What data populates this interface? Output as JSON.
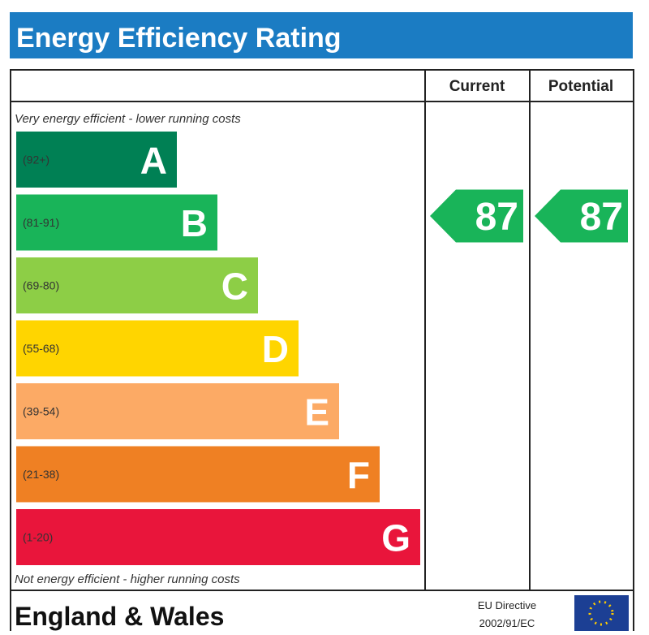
{
  "header": {
    "title": "Energy Efficiency Rating"
  },
  "columns": {
    "current": "Current",
    "potential": "Potential"
  },
  "top_note": "Very energy efficient - lower running costs",
  "bands": [
    {
      "range": "(92+)",
      "letter": "A",
      "color": "#008054"
    },
    {
      "range": "(81-91)",
      "letter": "B",
      "color": "#19b459"
    },
    {
      "range": "(69-80)",
      "letter": "C",
      "color": "#8dce46"
    },
    {
      "range": "(55-68)",
      "letter": "D",
      "color": "#ffd500"
    },
    {
      "range": "(39-54)",
      "letter": "E",
      "color": "#fcaa65"
    },
    {
      "range": "(21-38)",
      "letter": "F",
      "color": "#ef8023"
    },
    {
      "range": "(1-20)",
      "letter": "G",
      "color": "#e9153b"
    }
  ],
  "bottom_note": "Not energy efficient - higher running costs",
  "ratings": {
    "current": "87",
    "potential": "87"
  },
  "footer": {
    "region": "England & Wales",
    "directive": [
      "EU Directive",
      "2002/91/EC"
    ]
  }
}
